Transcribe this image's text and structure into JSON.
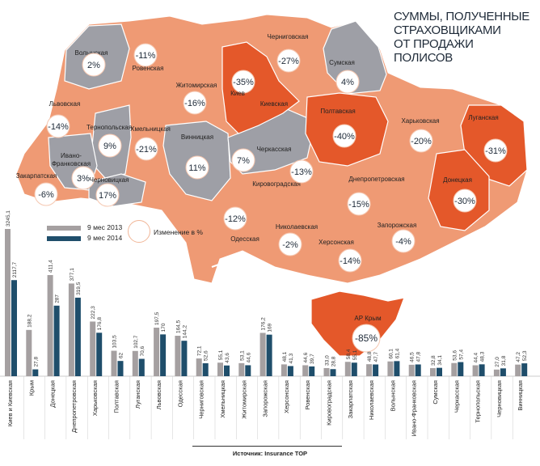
{
  "title_lines": [
    "СУММЫ, ПОЛУЧЕННЫЕ",
    "СТРАХОВЩИКАМИ",
    "ОТ ПРОДАЖИ ПОЛИСОВ"
  ],
  "legend": {
    "series_2013": "9 мес 2013",
    "series_2014": "9 мес 2014",
    "change": "Изменение в %"
  },
  "colors": {
    "gray": "#a5a0a1",
    "navy": "#1f4e6b",
    "light_orange": "#ef9a74",
    "mid_orange": "#ec8358",
    "dark_orange": "#e4582a",
    "map_gray": "#9e9fa6"
  },
  "map_regions": [
    {
      "name": "Волынская",
      "change": "2%",
      "shade": "gray"
    },
    {
      "name": "Ровенская",
      "change": "-11%",
      "shade": "light"
    },
    {
      "name": "Житомирская",
      "change": "-16%",
      "shade": "light"
    },
    {
      "name": "Черниговская",
      "change": "-27%",
      "shade": "light"
    },
    {
      "name": "Сумская",
      "change": "4%",
      "shade": "gray"
    },
    {
      "name": "Киевская",
      "change": "-35%",
      "shade": "dark"
    },
    {
      "name": "Киев",
      "change": "",
      "shade": "dark"
    },
    {
      "name": "Полтавская",
      "change": "-40%",
      "shade": "dark"
    },
    {
      "name": "Харьковская",
      "change": "-20%",
      "shade": "light"
    },
    {
      "name": "Луганская",
      "change": "-31%",
      "shade": "dark"
    },
    {
      "name": "Львовская",
      "change": "-14%",
      "shade": "light"
    },
    {
      "name": "Тернопольская",
      "change": "9%",
      "shade": "gray"
    },
    {
      "name": "Хмельницкая",
      "change": "-21%",
      "shade": "light"
    },
    {
      "name": "Винницкая",
      "change": "11%",
      "shade": "gray"
    },
    {
      "name": "Черкасская",
      "change": "7%",
      "shade": "gray"
    },
    {
      "name": "Ивано-Франковская",
      "change": "3%",
      "shade": "gray"
    },
    {
      "name": "Закарпатская",
      "change": "-6%",
      "shade": "light"
    },
    {
      "name": "Черновицкая",
      "change": "17%",
      "shade": "gray"
    },
    {
      "name": "Кировоградская",
      "change": "-13%",
      "shade": "light"
    },
    {
      "name": "Днепропетровская",
      "change": "-15%",
      "shade": "light"
    },
    {
      "name": "Донецкая",
      "change": "-30%",
      "shade": "dark"
    },
    {
      "name": "Одесская",
      "change": "-12%",
      "shade": "light"
    },
    {
      "name": "Николаевская",
      "change": "-2%",
      "shade": "light"
    },
    {
      "name": "Херсонская",
      "change": "-14%",
      "shade": "light"
    },
    {
      "name": "Запорожская",
      "change": "-4%",
      "shade": "light"
    },
    {
      "name": "АР Крым",
      "change": "-85%",
      "shade": "dark"
    }
  ],
  "chart_data": {
    "type": "bar",
    "categories": [
      "Киев и Киевская",
      "Крым",
      "Донецкая",
      "Днепропетровская",
      "Харьковская",
      "Полтавская",
      "Луганская",
      "Львовская",
      "Одесская",
      "Черниговская",
      "Хмельницкая",
      "Житомирская",
      "Запорожская",
      "Херсонская",
      "Ровенская",
      "Кировоградская",
      "Закарпатская",
      "Николаевская",
      "Волынская",
      "Ивано-Франковская",
      "Сумская",
      "Черкасская",
      "Тернопольская",
      "Черновицкая",
      "Винницкая"
    ],
    "series": [
      {
        "name": "9 мес 2013",
        "values": [
          3245.1,
          188.2,
          411.4,
          377.1,
          222.3,
          103.5,
          102.7,
          197.5,
          164.5,
          72.1,
          55.1,
          53.1,
          176.2,
          48.1,
          44.6,
          33.0,
          58.4,
          48.8,
          60.1,
          46.5,
          32.8,
          53.6,
          44.4,
          27.0,
          47.2
        ],
        "labels": [
          "3245,1",
          "188,2",
          "411,4",
          "377,1",
          "222,3",
          "103,5",
          "102,7",
          "197,5",
          "164,5",
          "72,1",
          "55,1",
          "53,1",
          "176,2",
          "48,1",
          "44,6",
          "33,0",
          "58,4",
          "48,8",
          "60,1",
          "46,5",
          "32,8",
          "53,6",
          "44,4",
          "27,0",
          "47,2"
        ]
      },
      {
        "name": "9 мес 2014",
        "values": [
          2117.7,
          27.8,
          287,
          319.5,
          176.8,
          62,
          70.6,
          170,
          144.2,
          52.6,
          43.6,
          44.6,
          169,
          41.3,
          39.7,
          28.8,
          55.1,
          47.7,
          61.4,
          47.8,
          34.1,
          57.4,
          48.3,
          31.8,
          52.3
        ],
        "labels": [
          "2117,7",
          "27,8",
          "287",
          "319,5",
          "176,8",
          "62",
          "70,6",
          "170",
          "144,2",
          "52,6",
          "43,6",
          "44,6",
          "169",
          "41,3",
          "39,7",
          "28,8",
          "55,1",
          "47,7",
          "61,4",
          "47,8",
          "34,1",
          "57,4",
          "48,3",
          "31,8",
          "52,3"
        ]
      }
    ]
  },
  "source": "Источник: Insurance TOP"
}
